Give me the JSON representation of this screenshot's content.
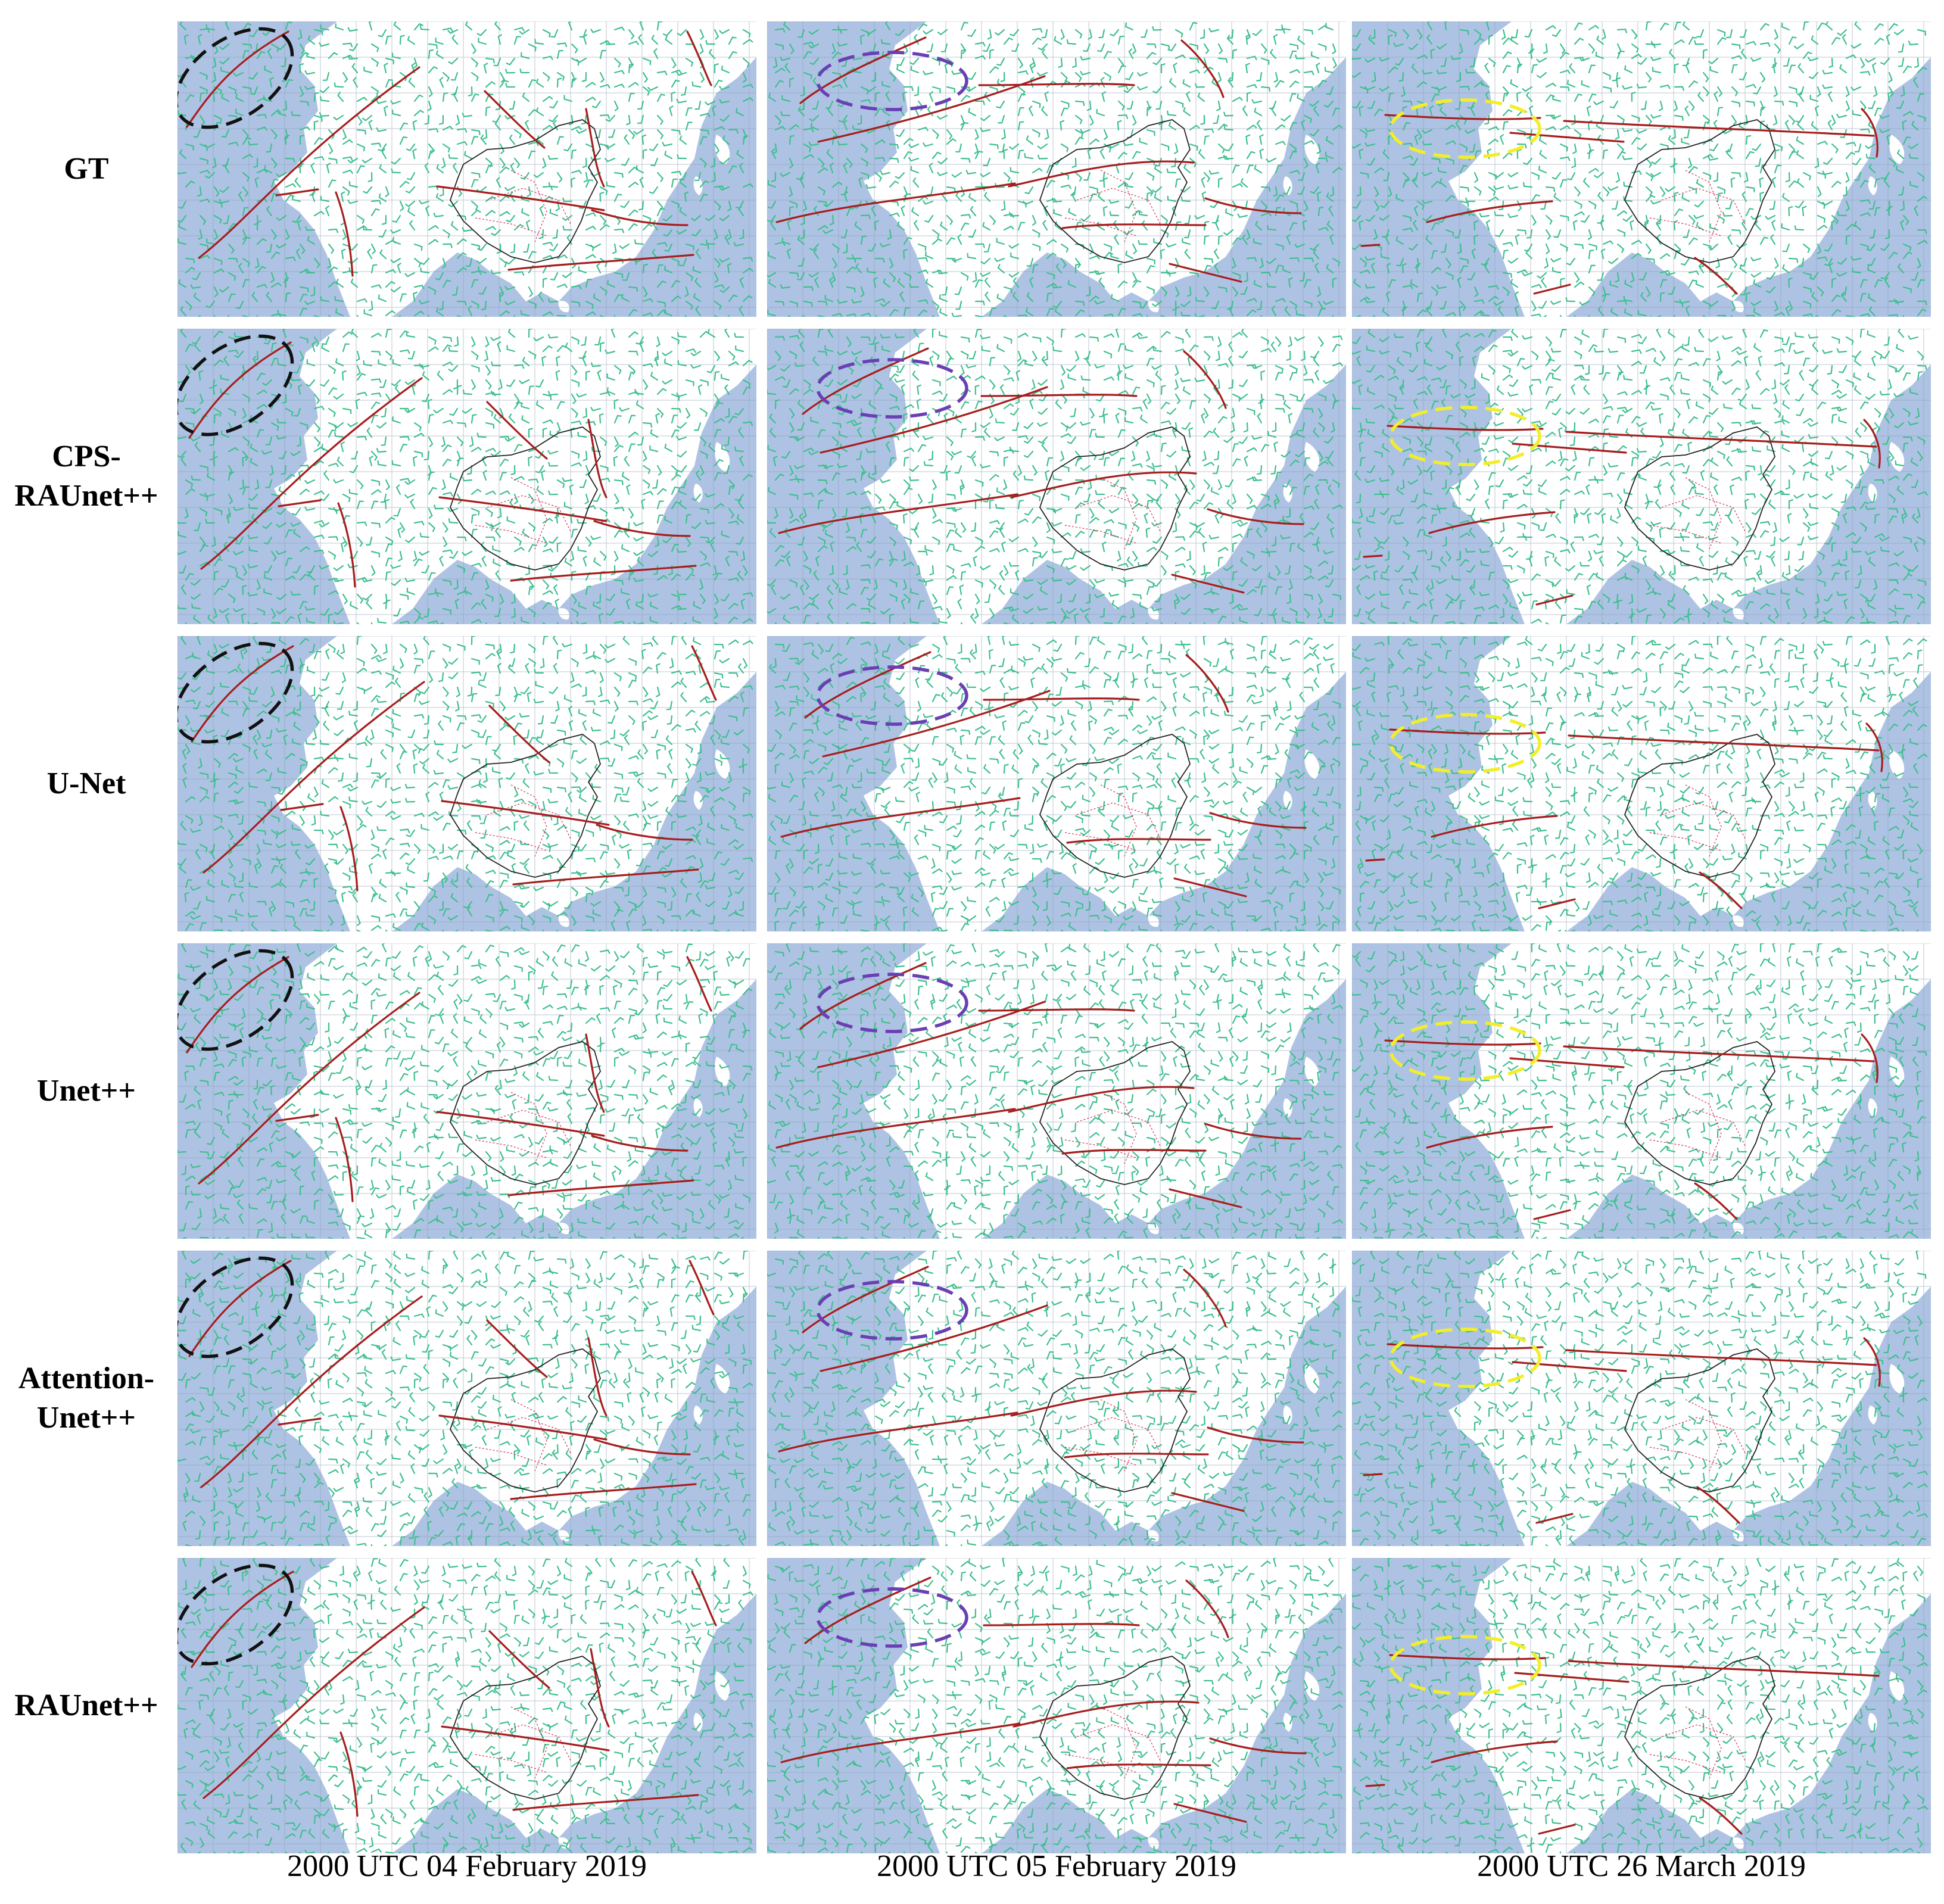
{
  "figure": {
    "rows": [
      {
        "label": "GT"
      },
      {
        "label": "CPS-\nRAUnet++"
      },
      {
        "label": "U-Net"
      },
      {
        "label": "Unet++"
      },
      {
        "label": "Attention-\nUnet++"
      },
      {
        "label": "RAUnet++"
      }
    ],
    "columns": [
      {
        "label": "2000 UTC 04 February 2019",
        "highlight_color": "#111111"
      },
      {
        "label": "2000 UTC 05 February 2019",
        "highlight_color": "#6a3fb3"
      },
      {
        "label": "2000 UTC 26 March 2019",
        "highlight_color": "#f2ee2a"
      }
    ],
    "colors": {
      "ocean": "#aec3e3",
      "land": "#ffffff",
      "wind_barbs": "#3fbf8f",
      "front_lines": "#a61e1e",
      "borders": "#222222",
      "provinces": "#cc3355",
      "grid": "#8a9bb5"
    },
    "map_icon_name": "wind-barb-map-icon"
  }
}
